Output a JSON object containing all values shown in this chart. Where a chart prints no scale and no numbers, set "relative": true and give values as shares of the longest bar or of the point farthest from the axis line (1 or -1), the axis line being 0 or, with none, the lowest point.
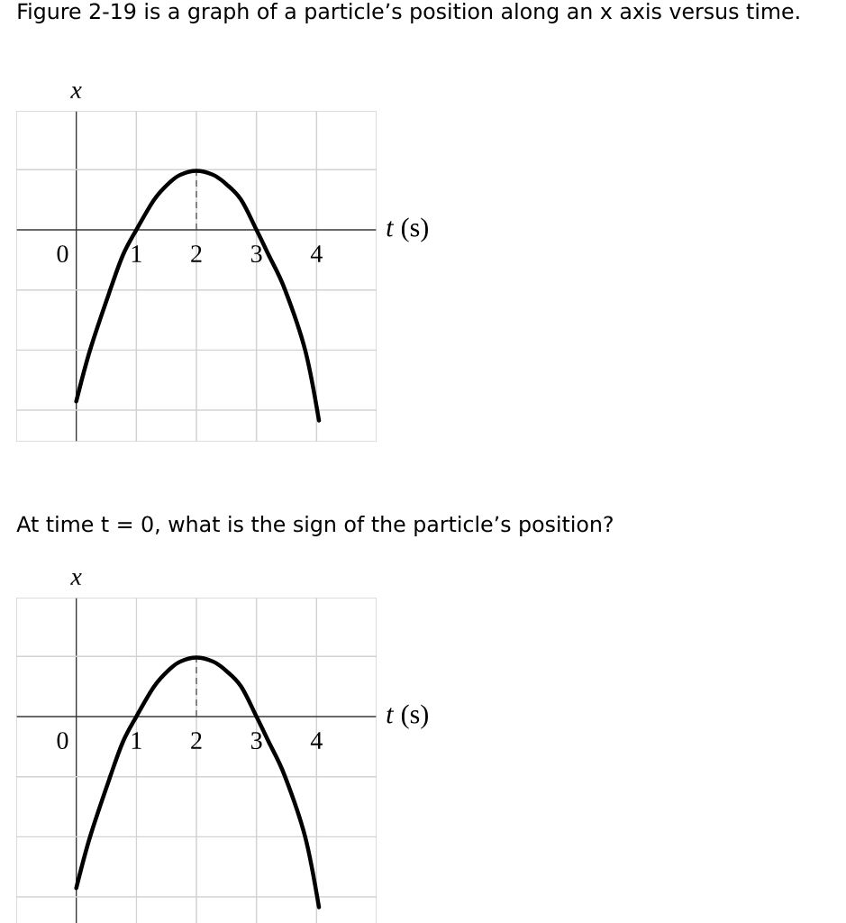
{
  "chart_data": [
    {
      "type": "line",
      "title": "Figure 2-19 is a graph of a particle’s position along an x axis versus time.",
      "xlabel": "*t* (s)",
      "ylabel": "x",
      "x": [
        0,
        0.23,
        0.57,
        0.78,
        1,
        1.3,
        1.56,
        1.74,
        2,
        2.27,
        2.46,
        2.74,
        3,
        3.2,
        3.47,
        3.81,
        4.04
      ],
      "values": [
        -0.9,
        -0.63,
        -0.31,
        -0.13,
        0,
        0.16,
        0.25,
        0.29,
        0.31,
        0.29,
        0.25,
        0.16,
        0,
        -0.13,
        -0.31,
        -0.63,
        -1
      ],
      "color": "#000000",
      "relative": true,
      "xlim": [
        -1,
        5
      ],
      "xticks": [
        0,
        1,
        2,
        3,
        4
      ],
      "grid": true,
      "ref_lines": [
        {
          "axis": "x",
          "value": 2,
          "line_style": "dashed",
          "color": "#555555"
        }
      ]
    },
    {
      "type": "line",
      "title": "At time t = 0, what is the sign of the particle’s position?",
      "xlabel": "*t* (s)",
      "ylabel": "x",
      "x": [
        0,
        0.23,
        0.57,
        0.78,
        1,
        1.3,
        1.56,
        1.74,
        2,
        2.27,
        2.46,
        2.74,
        3,
        3.2,
        3.47,
        3.81,
        4.04
      ],
      "values": [
        -0.9,
        -0.63,
        -0.31,
        -0.13,
        0,
        0.16,
        0.25,
        0.29,
        0.31,
        0.29,
        0.25,
        0.16,
        0,
        -0.13,
        -0.31,
        -0.63,
        -1
      ],
      "color": "#000000",
      "relative": true,
      "xlim": [
        -1,
        5
      ],
      "xticks": [
        0,
        1,
        2,
        3,
        4
      ],
      "grid": true,
      "ref_lines": [
        {
          "axis": "x",
          "value": 2,
          "line_style": "dashed",
          "color": "#555555"
        }
      ]
    }
  ]
}
